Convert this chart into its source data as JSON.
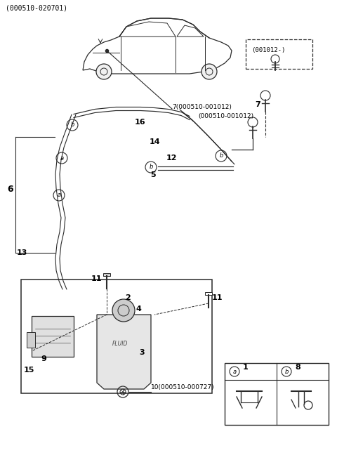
{
  "background_color": "#ffffff",
  "line_color": "#2a2a2a",
  "text_color": "#000000",
  "fig_width": 4.8,
  "fig_height": 6.55,
  "dpi": 100,
  "labels": {
    "header": "(000510-020701)",
    "ref_001012": "(001012-)",
    "ref_000510_001012_top": "7(000510-001012)",
    "ref_000510_001012_bot": "(000510-001012)",
    "num_7_right": "7",
    "num_6": "6",
    "num_13": "13",
    "num_16": "16",
    "num_14": "14",
    "num_12": "12",
    "num_5": "5",
    "num_11_top": "11",
    "num_11_mid": "11",
    "num_2": "2",
    "num_4": "4",
    "num_3": "3",
    "num_15": "15",
    "num_9": "9",
    "num_10": "10(000510-000727)",
    "legend_a_num": "1",
    "legend_b_num": "8"
  }
}
